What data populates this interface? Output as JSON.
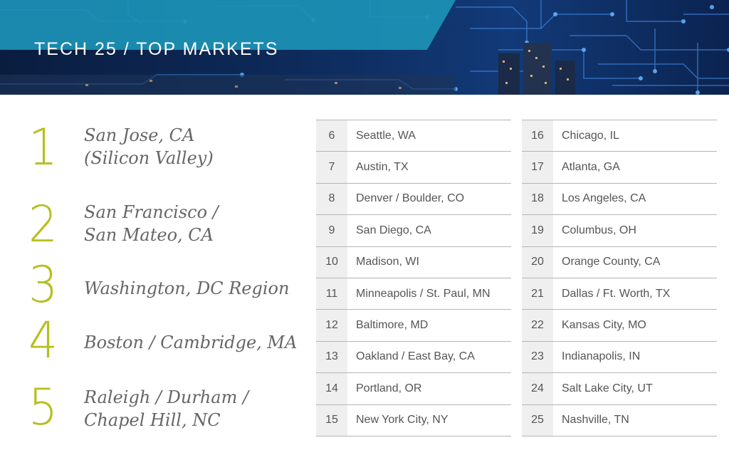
{
  "header": {
    "title": "TECH 25 / TOP MARKETS"
  },
  "colors": {
    "accent": "#b6bf1d",
    "banner_strip": "#1c93b6",
    "text": "#555555"
  },
  "top_markets": [
    {
      "rank": "1",
      "name": "San Jose, CA\n(Silicon Valley)"
    },
    {
      "rank": "2",
      "name": "San Francisco /\nSan Mateo, CA"
    },
    {
      "rank": "3",
      "name": "Washington, DC Region"
    },
    {
      "rank": "4",
      "name": "Boston / Cambridge, MA"
    },
    {
      "rank": "5",
      "name": "Raleigh / Durham /\nChapel Hill, NC"
    }
  ],
  "table_left": [
    {
      "rank": "6",
      "city": "Seattle, WA"
    },
    {
      "rank": "7",
      "city": "Austin, TX"
    },
    {
      "rank": "8",
      "city": "Denver / Boulder, CO"
    },
    {
      "rank": "9",
      "city": "San Diego, CA"
    },
    {
      "rank": "10",
      "city": "Madison, WI"
    },
    {
      "rank": "11",
      "city": "Minneapolis / St. Paul, MN"
    },
    {
      "rank": "12",
      "city": "Baltimore, MD"
    },
    {
      "rank": "13",
      "city": "Oakland / East Bay, CA"
    },
    {
      "rank": "14",
      "city": "Portland, OR"
    },
    {
      "rank": "15",
      "city": "New York City, NY"
    }
  ],
  "table_right": [
    {
      "rank": "16",
      "city": "Chicago, IL"
    },
    {
      "rank": "17",
      "city": "Atlanta, GA"
    },
    {
      "rank": "18",
      "city": "Los Angeles, CA"
    },
    {
      "rank": "19",
      "city": "Columbus, OH"
    },
    {
      "rank": "20",
      "city": "Orange County, CA"
    },
    {
      "rank": "21",
      "city": "Dallas / Ft. Worth, TX"
    },
    {
      "rank": "22",
      "city": "Kansas City, MO"
    },
    {
      "rank": "23",
      "city": "Indianapolis, IN"
    },
    {
      "rank": "24",
      "city": "Salt Lake City, UT"
    },
    {
      "rank": "25",
      "city": "Nashville, TN"
    }
  ]
}
